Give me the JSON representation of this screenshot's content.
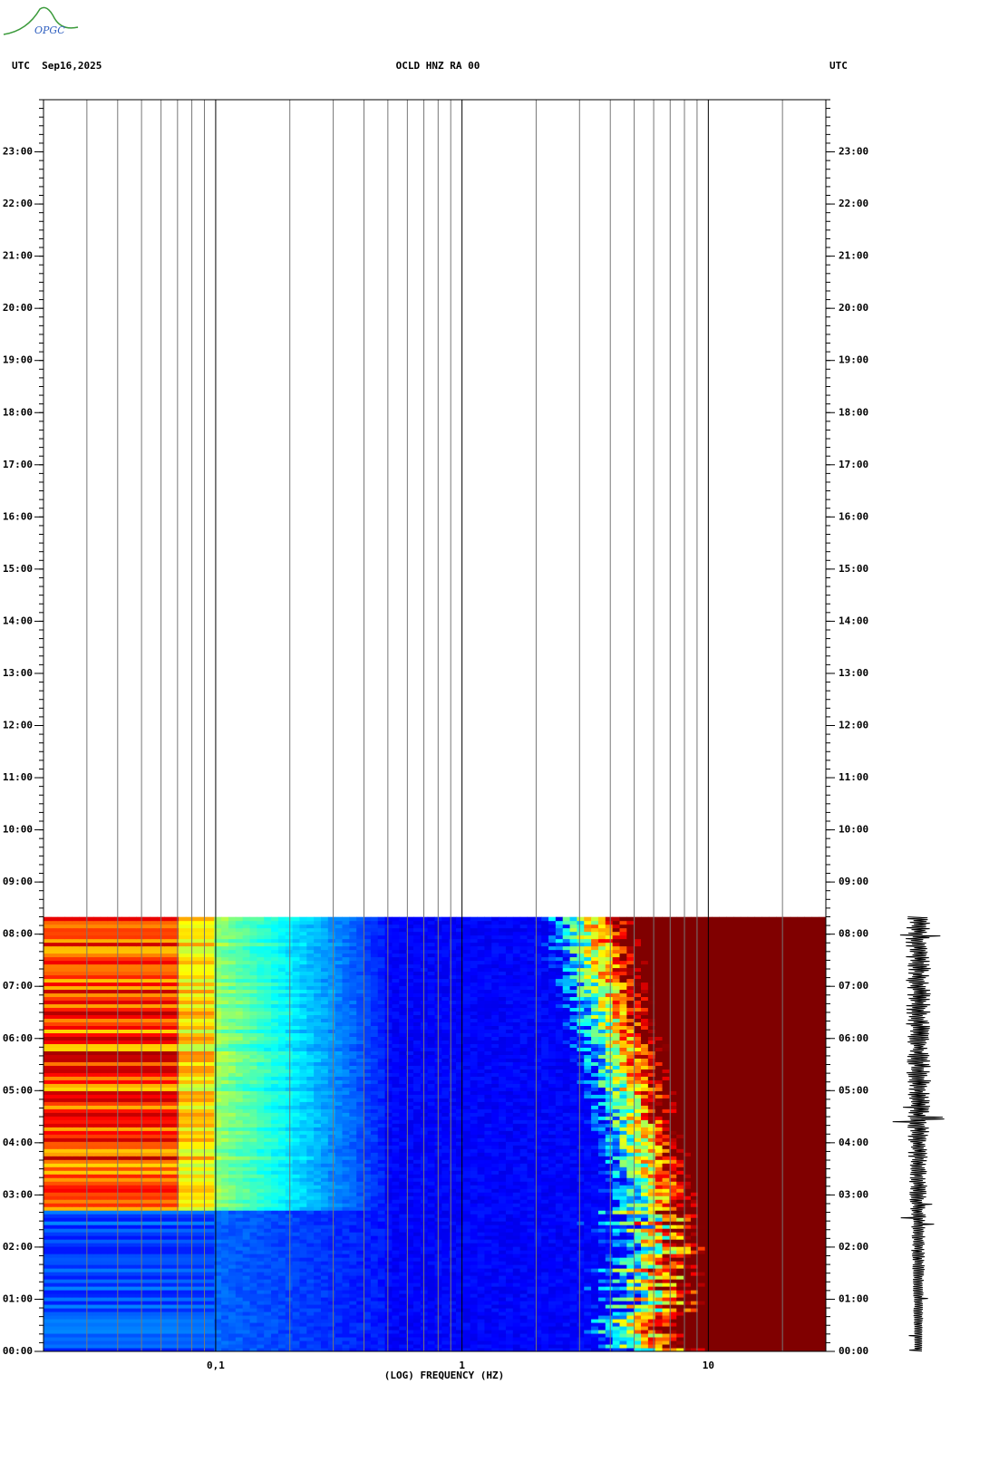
{
  "logo": "OPGC",
  "header": {
    "left": "UTC  Sep16,2025",
    "center": "OCLD HNZ RA 00",
    "right": "UTC"
  },
  "chart_data": {
    "type": "spectrogram",
    "x_label": "(LOG) FREQUENCY (HZ)",
    "xscale": "log",
    "xlim": [
      0.02,
      30
    ],
    "xticks": [
      {
        "value": 0.1,
        "label": "0,1"
      },
      1,
      10
    ],
    "xgrid": [
      0.03,
      0.04,
      0.05,
      0.06,
      0.07,
      0.08,
      0.09,
      0.2,
      0.3,
      0.4,
      0.5,
      0.6,
      0.7,
      0.8,
      0.9,
      2,
      3,
      4,
      5,
      6,
      7,
      8,
      9,
      20
    ],
    "ylim": [
      0,
      24
    ],
    "yticks": [
      {
        "value": 0,
        "label": "00:00"
      },
      {
        "value": 1,
        "label": "01:00"
      },
      {
        "value": 2,
        "label": "02:00"
      },
      {
        "value": 3,
        "label": "03:00"
      },
      {
        "value": 4,
        "label": "04:00"
      },
      {
        "value": 5,
        "label": "05:00"
      },
      {
        "value": 6,
        "label": "06:00"
      },
      {
        "value": 7,
        "label": "07:00"
      },
      {
        "value": 8,
        "label": "08:00"
      },
      {
        "value": 9,
        "label": "09:00"
      },
      {
        "value": 10,
        "label": "10:00"
      },
      {
        "value": 11,
        "label": "11:00"
      },
      {
        "value": 12,
        "label": "12:00"
      },
      {
        "value": 13,
        "label": "13:00"
      },
      {
        "value": 14,
        "label": "14:00"
      },
      {
        "value": 15,
        "label": "15:00"
      },
      {
        "value": 16,
        "label": "16:00"
      },
      {
        "value": 17,
        "label": "17:00"
      },
      {
        "value": 18,
        "label": "18:00"
      },
      {
        "value": 19,
        "label": "19:00"
      },
      {
        "value": 20,
        "label": "20:00"
      },
      {
        "value": 21,
        "label": "21:00"
      },
      {
        "value": 22,
        "label": "22:00"
      },
      {
        "value": 23,
        "label": "23:00"
      }
    ],
    "data_end": 8.33,
    "colormap": "jet"
  }
}
